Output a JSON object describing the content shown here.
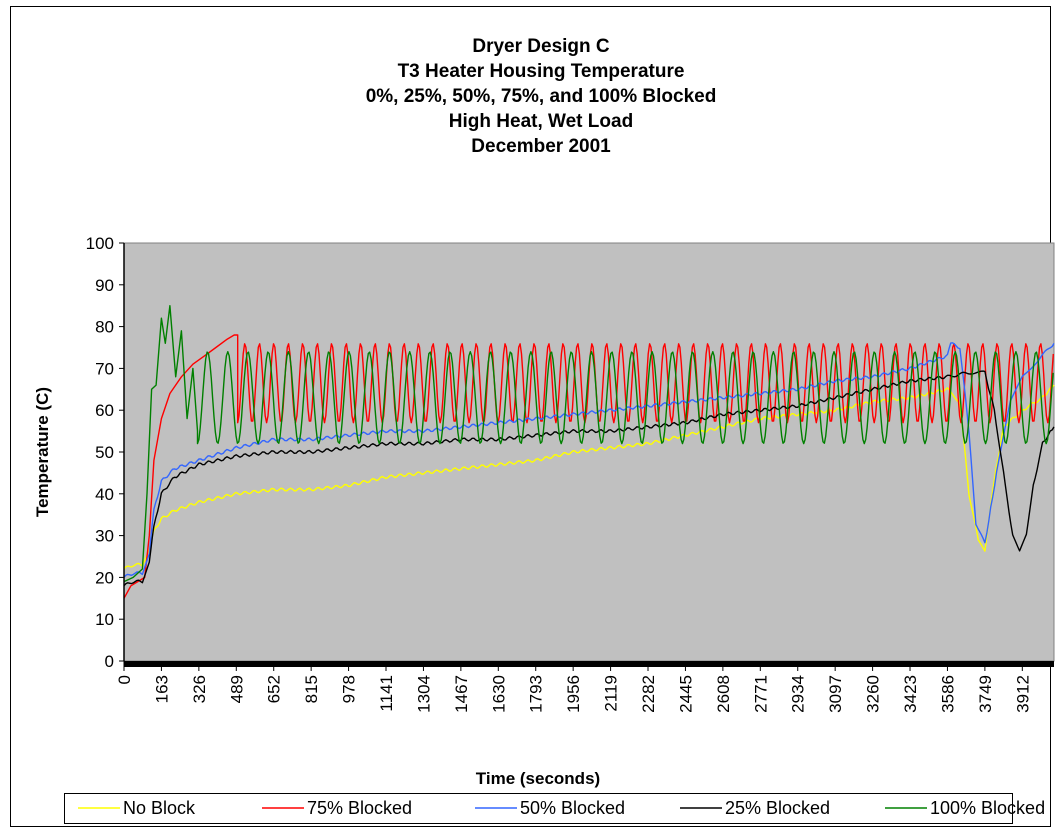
{
  "chart_data": {
    "type": "line",
    "title_lines": [
      "Dryer Design C",
      "T3 Heater Housing Temperature",
      "0%, 25%, 50%, 75%, and 100% Blocked",
      "High Heat, Wet Load",
      "December 2001"
    ],
    "xlabel": "Time (seconds)",
    "ylabel": "Temperature (C)",
    "xlim": [
      0,
      4050
    ],
    "ylim": [
      0,
      100
    ],
    "x_tick_labels": [
      "0",
      "163",
      "326",
      "489",
      "652",
      "815",
      "978",
      "1141",
      "1304",
      "1467",
      "1630",
      "1793",
      "1956",
      "2119",
      "2282",
      "2445",
      "2608",
      "2771",
      "2934",
      "3097",
      "3260",
      "3423",
      "3586",
      "3749",
      "3912"
    ],
    "y_ticks": [
      0,
      10,
      20,
      30,
      40,
      50,
      60,
      70,
      80,
      90,
      100
    ],
    "grid": false,
    "legend_position": "bottom",
    "series": [
      {
        "name": "No Block",
        "color": "#ffff00",
        "x": [
          0,
          40,
          80,
          110,
          130,
          163,
          220,
          326,
          489,
          652,
          815,
          978,
          1141,
          1304,
          1467,
          1630,
          1793,
          1956,
          2119,
          2282,
          2445,
          2608,
          2771,
          2934,
          3097,
          3260,
          3423,
          3586,
          3640,
          3680,
          3720,
          3749,
          3780,
          3830,
          3912,
          4000,
          4050
        ],
        "y": [
          22,
          23,
          23,
          27,
          31,
          34,
          36,
          38,
          40,
          41,
          41,
          42,
          44,
          45,
          46,
          47,
          48,
          50,
          51,
          52,
          54,
          56,
          58,
          59,
          60,
          62,
          63,
          65,
          62,
          40,
          29,
          26,
          40,
          56,
          60,
          63,
          66
        ]
      },
      {
        "name": "75% Blocked",
        "color": "#ff0000",
        "x": [
          0,
          30,
          60,
          90,
          110,
          130,
          163,
          200,
          250,
          300,
          350,
          400,
          450,
          480,
          495
        ],
        "y": [
          15,
          18,
          19,
          20,
          30,
          48,
          58,
          64,
          68,
          71,
          73,
          75,
          77,
          78,
          78
        ],
        "osc_start": 495,
        "osc_end": 4050,
        "osc_period": 63,
        "osc_low": 57,
        "osc_high": 76
      },
      {
        "name": "50% Blocked",
        "color": "#3366ff",
        "x": [
          0,
          40,
          80,
          110,
          130,
          163,
          220,
          326,
          489,
          652,
          815,
          978,
          1141,
          1304,
          1467,
          1630,
          1793,
          1956,
          2119,
          2282,
          2445,
          2608,
          2771,
          2934,
          3097,
          3260,
          3423,
          3586,
          3600,
          3640,
          3680,
          3710,
          3749,
          3800,
          3860,
          3912,
          3980,
          4050
        ],
        "y": [
          20,
          21,
          21,
          26,
          36,
          43,
          46,
          48,
          51,
          53,
          53,
          54,
          55,
          55,
          56,
          57,
          58,
          59,
          60,
          61,
          62,
          63,
          64,
          65,
          67,
          68,
          70,
          73,
          76,
          75,
          55,
          33,
          28,
          45,
          62,
          68,
          72,
          76
        ]
      },
      {
        "name": "25% Blocked",
        "color": "#000000",
        "x": [
          0,
          40,
          80,
          110,
          130,
          163,
          220,
          326,
          489,
          652,
          815,
          978,
          1141,
          1304,
          1467,
          1630,
          1793,
          1956,
          2119,
          2282,
          2445,
          2608,
          2771,
          2934,
          3097,
          3260,
          3423,
          3586,
          3680,
          3749,
          3790,
          3830,
          3870,
          3900,
          3930,
          3960,
          4000,
          4050
        ],
        "y": [
          18,
          19,
          19,
          24,
          32,
          40,
          44,
          47,
          49,
          50,
          50,
          51,
          52,
          52,
          53,
          53,
          54,
          55,
          55,
          56,
          57,
          59,
          60,
          61,
          63,
          65,
          67,
          68,
          69,
          69,
          60,
          45,
          30,
          26,
          30,
          42,
          52,
          56
        ]
      },
      {
        "name": "100% Blocked",
        "color": "#008000",
        "x": [
          0,
          40,
          80,
          100,
          120,
          140,
          163,
          180,
          200,
          225,
          250,
          275,
          300,
          320
        ],
        "y": [
          19,
          20,
          22,
          40,
          65,
          66,
          82,
          76,
          85,
          68,
          79,
          58,
          70,
          55
        ],
        "osc_start": 320,
        "osc_end": 4050,
        "osc_period": 88,
        "osc_low": 52,
        "osc_high": 74
      }
    ]
  }
}
